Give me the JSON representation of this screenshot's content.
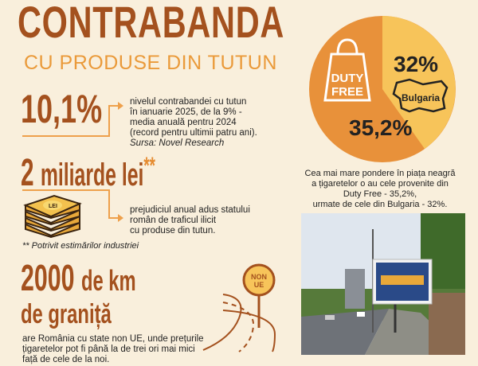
{
  "title": "CONTRABANDA",
  "subtitle": "CU PRODUSE DIN TUTUN",
  "stat1": {
    "value": "10,1%",
    "lines": [
      "nivelul contrabandei cu tutun",
      "în ianuarie 2025, de la 9% -",
      "media anuală pentru 2024",
      "(record pentru ultimii patru ani)."
    ],
    "source": "Sursa: Novel Research"
  },
  "stat2": {
    "value": "2",
    "unit": "miliarde lei",
    "mark": "**",
    "lines": [
      "prejudiciul anual adus statului",
      "român de traficul ilicit",
      "cu produse din tutun."
    ],
    "footnote": "** Potrivit estimărilor industriei",
    "money_label": "LEI"
  },
  "stat3": {
    "value": "2000",
    "unit": "de km",
    "line2": "de graniță",
    "lines": [
      "are România cu state non UE, unde prețurile",
      "țigaretelor pot fi până la de trei ori mai mici",
      "față de cele de la noi."
    ],
    "sign": [
      "NON",
      "UE"
    ]
  },
  "pie": {
    "slices": [
      {
        "label": "Duty Free",
        "value": 35.2,
        "display": "35,2%",
        "icon_text": [
          "DUTY",
          "FREE"
        ],
        "color": "#e8913a"
      },
      {
        "label": "Bulgaria",
        "value": 32,
        "display": "32%",
        "color": "#f7c45a"
      }
    ],
    "caption": [
      "Cea mai mare pondere în piața neagră",
      "a țigaretelor o au cele provenite din",
      "Duty Free - 35,2%,",
      "urmate de cele din Bulgaria - 32%."
    ]
  },
  "colors": {
    "background": "#f9efdc",
    "brown": "#a4511e",
    "orange": "#e8913a",
    "light": "#f7c45a"
  }
}
